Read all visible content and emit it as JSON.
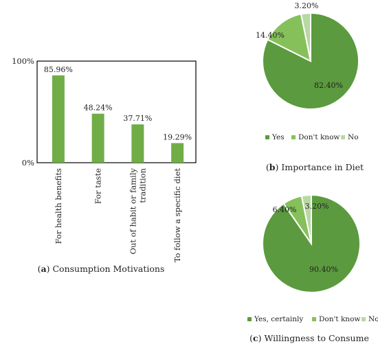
{
  "chart_data": [
    {
      "type": "bar",
      "caption_letter": "a",
      "caption_text": " Consumption Motivations",
      "categories": [
        [
          "For health benefits"
        ],
        [
          "For taste"
        ],
        [
          "Out of habit or family",
          "tradition"
        ],
        [
          "To follow a specific diet"
        ]
      ],
      "values": [
        85.96,
        48.24,
        37.71,
        19.29
      ],
      "data_labels": [
        "85.96%",
        "48.24%",
        "37.71%",
        "19.29%"
      ],
      "yticks": [
        "0%",
        "100%"
      ],
      "ylim": [
        0,
        100
      ],
      "color": "#70ad47"
    },
    {
      "type": "pie",
      "caption_letter": "b",
      "caption_text": " Importance in Diet",
      "slices": [
        {
          "label": "Yes",
          "value": 82.4,
          "text": "82.40%",
          "color": "#5b9a3e"
        },
        {
          "label": "Don't know",
          "value": 14.4,
          "text": "14.40%",
          "color": "#86c05a"
        },
        {
          "label": "No",
          "value": 3.2,
          "text": "3.20%",
          "color": "#b8d8a4"
        }
      ]
    },
    {
      "type": "pie",
      "caption_letter": "c",
      "caption_text": " Willingness to Consume",
      "slices": [
        {
          "label": "Yes, certainly",
          "value": 90.4,
          "text": "90.40%",
          "color": "#5b9a3e"
        },
        {
          "label": "Don't know",
          "value": 6.4,
          "text": "6.40%",
          "color": "#86c05a"
        },
        {
          "label": "No",
          "value": 3.2,
          "text": "3.20%",
          "color": "#b8d8a4"
        }
      ]
    }
  ]
}
